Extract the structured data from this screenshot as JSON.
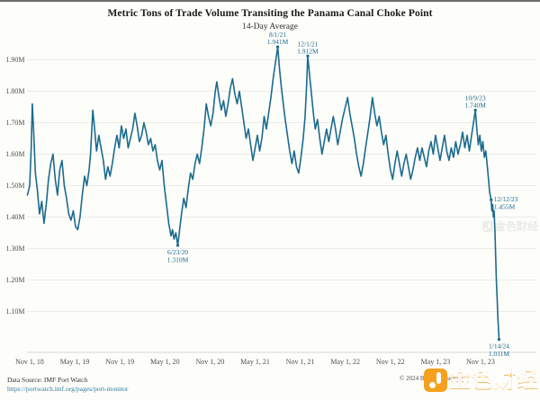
{
  "header": {
    "title": "Metric Tons of Trade Volume Transiting the Panama Canal Choke Point",
    "subtitle": "14-Day Average"
  },
  "footer": {
    "source_line1": "Data Source: IMF Port Watch",
    "source_line2": "https://portwatch.imf.org/pages/port-monitor",
    "copyright": "© 2024 Bianco Research"
  },
  "watermark": {
    "text": "金色财经",
    "color": "#f5a11d"
  },
  "colors": {
    "line": "#1B6B8E",
    "grid": "#ebebe9",
    "axis_line": "#d8d8d4",
    "tick_text": "#4f4f4d",
    "annotation_text": "#1B6B8E",
    "background": "#fdfdfa"
  },
  "chart_data": {
    "type": "line",
    "title": "Metric Tons of Trade Volume Transiting the Panama Canal Choke Point",
    "subtitle": "14-Day Average",
    "xlabel": "",
    "ylabel": "",
    "grid": "horizontal gridlines only",
    "legend": "none",
    "x_unit": "months since 2018-11-01",
    "xlim_months": [
      -0.3,
      62.8
    ],
    "ylim": [
      1.03,
      1.96
    ],
    "y_ticks": [
      {
        "v": 1.1,
        "label": "1.10M"
      },
      {
        "v": 1.2,
        "label": "1.20M"
      },
      {
        "v": 1.3,
        "label": "1.30M"
      },
      {
        "v": 1.4,
        "label": "1.40M"
      },
      {
        "v": 1.5,
        "label": "1.50M"
      },
      {
        "v": 1.6,
        "label": "1.60M"
      },
      {
        "v": 1.7,
        "label": "1.70M"
      },
      {
        "v": 1.8,
        "label": "1.80M"
      },
      {
        "v": 1.9,
        "label": "1.90M"
      }
    ],
    "x_ticks": [
      {
        "t": 0,
        "label": "Nov 1, 18"
      },
      {
        "t": 6,
        "label": "May 1, 19"
      },
      {
        "t": 12,
        "label": "Nov 1, 19"
      },
      {
        "t": 18,
        "label": "May 1, 20"
      },
      {
        "t": 24,
        "label": "Nov 1, 20"
      },
      {
        "t": 30,
        "label": "May 1, 21"
      },
      {
        "t": 36,
        "label": "Nov 1, 21"
      },
      {
        "t": 42,
        "label": "May 1, 22"
      },
      {
        "t": 48,
        "label": "Nov 1, 22"
      },
      {
        "t": 54,
        "label": "May 1, 23"
      },
      {
        "t": 60,
        "label": "Nov 1, 23"
      }
    ],
    "annotations": [
      {
        "date": "6/23/20",
        "value": "1.310M",
        "t": 19.7,
        "v": 1.31,
        "placement": "below"
      },
      {
        "date": "8/1/21",
        "value": "1.941M",
        "t": 33.0,
        "v": 1.941,
        "placement": "above"
      },
      {
        "date": "12/1/21",
        "value": "1.912M",
        "t": 37.0,
        "v": 1.912,
        "placement": "above"
      },
      {
        "date": "10/9/23",
        "value": "1.740M",
        "t": 59.3,
        "v": 1.74,
        "placement": "above"
      },
      {
        "date": "12/12/23",
        "value": "1.455M",
        "t": 61.4,
        "v": 1.455,
        "placement": "right"
      },
      {
        "date": "1/14/24",
        "value": "1.011M",
        "t": 62.45,
        "v": 1.011,
        "placement": "below"
      }
    ],
    "series": {
      "name": "14-day average metric tons transiting Panama Canal",
      "points": [
        [
          -0.3,
          1.47
        ],
        [
          0,
          1.5
        ],
        [
          0.2,
          1.62
        ],
        [
          0.35,
          1.76
        ],
        [
          0.55,
          1.66
        ],
        [
          0.75,
          1.54
        ],
        [
          1.0,
          1.49
        ],
        [
          1.3,
          1.41
        ],
        [
          1.6,
          1.45
        ],
        [
          1.9,
          1.38
        ],
        [
          2.2,
          1.44
        ],
        [
          2.5,
          1.52
        ],
        [
          2.8,
          1.57
        ],
        [
          3.1,
          1.6
        ],
        [
          3.4,
          1.52
        ],
        [
          3.7,
          1.47
        ],
        [
          4.0,
          1.55
        ],
        [
          4.3,
          1.58
        ],
        [
          4.6,
          1.5
        ],
        [
          4.9,
          1.46
        ],
        [
          5.2,
          1.41
        ],
        [
          5.5,
          1.39
        ],
        [
          5.8,
          1.42
        ],
        [
          6.1,
          1.37
        ],
        [
          6.4,
          1.36
        ],
        [
          6.7,
          1.4
        ],
        [
          7.0,
          1.47
        ],
        [
          7.3,
          1.53
        ],
        [
          7.6,
          1.5
        ],
        [
          7.9,
          1.55
        ],
        [
          8.1,
          1.6
        ],
        [
          8.4,
          1.74
        ],
        [
          8.6,
          1.69
        ],
        [
          8.9,
          1.61
        ],
        [
          9.2,
          1.66
        ],
        [
          9.5,
          1.62
        ],
        [
          9.8,
          1.58
        ],
        [
          10.1,
          1.52
        ],
        [
          10.4,
          1.56
        ],
        [
          10.7,
          1.53
        ],
        [
          11.0,
          1.57
        ],
        [
          11.3,
          1.62
        ],
        [
          11.6,
          1.66
        ],
        [
          11.9,
          1.62
        ],
        [
          12.2,
          1.69
        ],
        [
          12.5,
          1.65
        ],
        [
          12.8,
          1.68
        ],
        [
          13.1,
          1.62
        ],
        [
          13.4,
          1.65
        ],
        [
          13.7,
          1.68
        ],
        [
          14.0,
          1.73
        ],
        [
          14.3,
          1.69
        ],
        [
          14.6,
          1.64
        ],
        [
          14.9,
          1.66
        ],
        [
          15.2,
          1.7
        ],
        [
          15.5,
          1.67
        ],
        [
          15.8,
          1.63
        ],
        [
          16.1,
          1.65
        ],
        [
          16.4,
          1.61
        ],
        [
          16.7,
          1.63
        ],
        [
          17.0,
          1.58
        ],
        [
          17.3,
          1.55
        ],
        [
          17.6,
          1.58
        ],
        [
          17.9,
          1.5
        ],
        [
          18.2,
          1.44
        ],
        [
          18.5,
          1.38
        ],
        [
          18.8,
          1.34
        ],
        [
          19.0,
          1.36
        ],
        [
          19.2,
          1.33
        ],
        [
          19.45,
          1.35
        ],
        [
          19.7,
          1.31
        ],
        [
          19.95,
          1.36
        ],
        [
          20.2,
          1.41
        ],
        [
          20.5,
          1.46
        ],
        [
          20.8,
          1.43
        ],
        [
          21.1,
          1.49
        ],
        [
          21.4,
          1.54
        ],
        [
          21.7,
          1.52
        ],
        [
          22.0,
          1.57
        ],
        [
          22.3,
          1.6
        ],
        [
          22.6,
          1.57
        ],
        [
          22.9,
          1.62
        ],
        [
          23.2,
          1.68
        ],
        [
          23.5,
          1.76
        ],
        [
          23.8,
          1.72
        ],
        [
          24.1,
          1.69
        ],
        [
          24.4,
          1.73
        ],
        [
          24.7,
          1.8
        ],
        [
          24.9,
          1.83
        ],
        [
          25.2,
          1.78
        ],
        [
          25.5,
          1.74
        ],
        [
          25.8,
          1.77
        ],
        [
          26.1,
          1.72
        ],
        [
          26.4,
          1.76
        ],
        [
          26.7,
          1.81
        ],
        [
          27.0,
          1.84
        ],
        [
          27.3,
          1.79
        ],
        [
          27.6,
          1.76
        ],
        [
          27.9,
          1.8
        ],
        [
          28.2,
          1.75
        ],
        [
          28.5,
          1.7
        ],
        [
          28.8,
          1.65
        ],
        [
          29.1,
          1.68
        ],
        [
          29.4,
          1.63
        ],
        [
          29.7,
          1.58
        ],
        [
          30.0,
          1.62
        ],
        [
          30.3,
          1.66
        ],
        [
          30.6,
          1.61
        ],
        [
          30.9,
          1.65
        ],
        [
          31.2,
          1.72
        ],
        [
          31.5,
          1.68
        ],
        [
          31.8,
          1.73
        ],
        [
          32.1,
          1.78
        ],
        [
          32.4,
          1.84
        ],
        [
          32.7,
          1.89
        ],
        [
          33.0,
          1.941
        ],
        [
          33.25,
          1.87
        ],
        [
          33.5,
          1.81
        ],
        [
          33.75,
          1.76
        ],
        [
          34.0,
          1.71
        ],
        [
          34.3,
          1.66
        ],
        [
          34.6,
          1.61
        ],
        [
          34.9,
          1.57
        ],
        [
          35.2,
          1.61
        ],
        [
          35.5,
          1.56
        ],
        [
          35.8,
          1.54
        ],
        [
          36.1,
          1.59
        ],
        [
          36.4,
          1.65
        ],
        [
          36.65,
          1.72
        ],
        [
          36.85,
          1.82
        ],
        [
          37.0,
          1.912
        ],
        [
          37.25,
          1.85
        ],
        [
          37.5,
          1.79
        ],
        [
          37.75,
          1.73
        ],
        [
          38.0,
          1.68
        ],
        [
          38.3,
          1.71
        ],
        [
          38.6,
          1.65
        ],
        [
          38.9,
          1.6
        ],
        [
          39.2,
          1.64
        ],
        [
          39.5,
          1.68
        ],
        [
          39.8,
          1.64
        ],
        [
          40.1,
          1.68
        ],
        [
          40.4,
          1.72
        ],
        [
          40.7,
          1.68
        ],
        [
          41.0,
          1.63
        ],
        [
          41.3,
          1.67
        ],
        [
          41.6,
          1.71
        ],
        [
          41.9,
          1.74
        ],
        [
          42.3,
          1.78
        ],
        [
          42.6,
          1.73
        ],
        [
          42.9,
          1.69
        ],
        [
          43.2,
          1.65
        ],
        [
          43.5,
          1.6
        ],
        [
          43.8,
          1.56
        ],
        [
          44.1,
          1.53
        ],
        [
          44.4,
          1.57
        ],
        [
          44.7,
          1.62
        ],
        [
          45.0,
          1.67
        ],
        [
          45.3,
          1.72
        ],
        [
          45.6,
          1.78
        ],
        [
          45.9,
          1.73
        ],
        [
          46.2,
          1.69
        ],
        [
          46.5,
          1.72
        ],
        [
          46.8,
          1.67
        ],
        [
          47.1,
          1.63
        ],
        [
          47.4,
          1.66
        ],
        [
          47.7,
          1.6
        ],
        [
          48.0,
          1.55
        ],
        [
          48.3,
          1.52
        ],
        [
          48.6,
          1.57
        ],
        [
          48.9,
          1.61
        ],
        [
          49.2,
          1.57
        ],
        [
          49.5,
          1.53
        ],
        [
          49.8,
          1.57
        ],
        [
          50.1,
          1.6
        ],
        [
          50.4,
          1.56
        ],
        [
          50.7,
          1.52
        ],
        [
          51.0,
          1.55
        ],
        [
          51.3,
          1.59
        ],
        [
          51.6,
          1.62
        ],
        [
          51.9,
          1.58
        ],
        [
          52.2,
          1.62
        ],
        [
          52.5,
          1.59
        ],
        [
          52.8,
          1.56
        ],
        [
          53.1,
          1.61
        ],
        [
          53.4,
          1.64
        ],
        [
          53.7,
          1.6
        ],
        [
          54.0,
          1.66
        ],
        [
          54.3,
          1.62
        ],
        [
          54.6,
          1.58
        ],
        [
          54.9,
          1.62
        ],
        [
          55.2,
          1.66
        ],
        [
          55.5,
          1.61
        ],
        [
          55.8,
          1.58
        ],
        [
          56.1,
          1.62
        ],
        [
          56.4,
          1.59
        ],
        [
          56.7,
          1.64
        ],
        [
          57.0,
          1.6
        ],
        [
          57.3,
          1.63
        ],
        [
          57.6,
          1.67
        ],
        [
          57.9,
          1.62
        ],
        [
          58.2,
          1.66
        ],
        [
          58.5,
          1.61
        ],
        [
          58.8,
          1.66
        ],
        [
          59.05,
          1.7
        ],
        [
          59.3,
          1.74
        ],
        [
          59.5,
          1.68
        ],
        [
          59.7,
          1.63
        ],
        [
          59.9,
          1.66
        ],
        [
          60.1,
          1.61
        ],
        [
          60.3,
          1.64
        ],
        [
          60.5,
          1.59
        ],
        [
          60.7,
          1.61
        ],
        [
          60.9,
          1.56
        ],
        [
          61.05,
          1.52
        ],
        [
          61.2,
          1.48
        ],
        [
          61.4,
          1.455
        ],
        [
          61.5,
          1.42
        ],
        [
          61.6,
          1.44
        ],
        [
          61.7,
          1.4
        ],
        [
          61.8,
          1.42
        ],
        [
          61.9,
          1.36
        ],
        [
          62.0,
          1.28
        ],
        [
          62.1,
          1.2
        ],
        [
          62.2,
          1.14
        ],
        [
          62.3,
          1.08
        ],
        [
          62.45,
          1.011
        ]
      ]
    }
  }
}
